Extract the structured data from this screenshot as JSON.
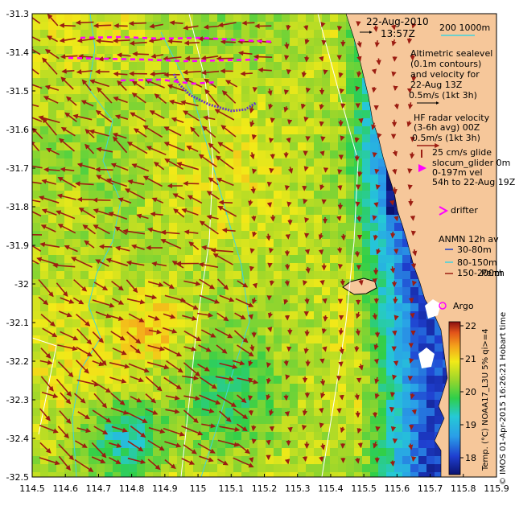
{
  "map": {
    "date": "22-Aug-2010",
    "time": "13:57Z",
    "bathy_legend": "200  1000m",
    "sealevel_label": [
      "Altimetric sealevel",
      "(0.1m contours)",
      "and velocity for",
      "22-Aug 13Z",
      "0.5m/s (1kt 3h)"
    ],
    "hf_radar_label": [
      "HF radar velocity",
      "(3-6h avg) 00Z",
      "0.5m/s (1kt 3h)"
    ],
    "glider_label": [
      "25 cm/s glide",
      "slocum_glider 0m",
      "0-197m vel",
      "54h to 22-Aug 19Z"
    ],
    "drifter_label": "drifter",
    "anmn_label": "ANMN 12h av",
    "anmn_items": [
      "30-80m",
      "80-150m",
      "150-200m"
    ],
    "city_label": "Perth",
    "argo_label": "Argo",
    "colorbar_title": "Temp. (°C) NOAA17_L3U 5% qi>=4",
    "colorbar_ticks": [
      "22",
      "21",
      "20",
      "19",
      "18"
    ],
    "credit": "© IMOS 01-Apr-2015 16:26:21 Hobart time",
    "x_ticks": [
      "114.5",
      "114.6",
      "114.7",
      "114.8",
      "114.9",
      "115",
      "115.1",
      "115.2",
      "115.3",
      "115.4",
      "115.5",
      "115.6",
      "115.7",
      "115.8",
      "115.9"
    ],
    "y_ticks": [
      "-31.3",
      "-31.4",
      "-31.5",
      "-31.6",
      "-31.7",
      "-31.8",
      "-31.9",
      "-32",
      "-32.1",
      "-32.2",
      "-32.3",
      "-32.4",
      "-32.5"
    ],
    "colors": {
      "land": "#f6c79a",
      "arrow": "#9c1d12",
      "glider": "#6633cc",
      "drifter": "#ff00ff",
      "contour": "#ffffff",
      "bathy": "#3fd3e0"
    }
  }
}
